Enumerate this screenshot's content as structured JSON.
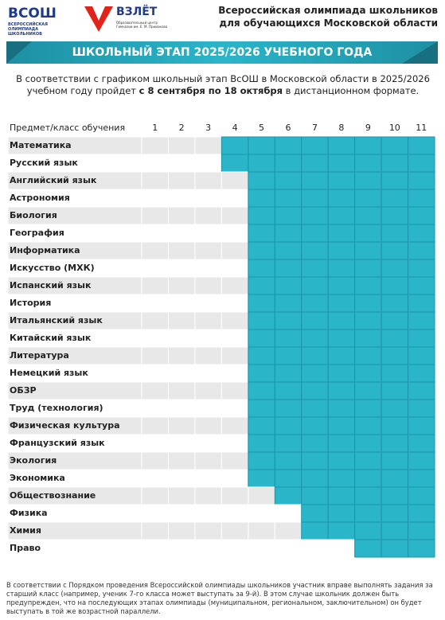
{
  "header": {
    "logo_vsosh": "ВСОШ",
    "logo_vsosh_sub": "ВСЕРОССИЙСКАЯ ОЛИМПИАДА ШКОЛЬНИКОВ",
    "logo_vzlet": "ВЗЛЁТ",
    "logo_vzlet_sub": "Образовательный центр Гимназии им. Е. М. Примакова",
    "title": "Всероссийская олимпиада школьников для обучающихся Московской области"
  },
  "banner": "ШКОЛЬНЫЙ ЭТАП 2025/2026 УЧЕБНОГО ГОДА",
  "intro": {
    "before": "В соответствии с графиком школьный этап ВсОШ в Московской области в 2025/2026 учебном году пройдет ",
    "bold": "с 8 сентября по 18 октября",
    "after": " в дистанционном формате."
  },
  "table": {
    "header": "Предмет/класс обучения",
    "grades": [
      1,
      2,
      3,
      4,
      5,
      6,
      7,
      8,
      9,
      10,
      11
    ],
    "highlight_color": "#2bb5c9",
    "rows": [
      {
        "subject": "Математика",
        "first_grade": 4
      },
      {
        "subject": "Русский язык",
        "first_grade": 4
      },
      {
        "subject": "Английский язык",
        "first_grade": 5
      },
      {
        "subject": "Астрономия",
        "first_grade": 5
      },
      {
        "subject": "Биология",
        "first_grade": 5
      },
      {
        "subject": "География",
        "first_grade": 5
      },
      {
        "subject": "Информатика",
        "first_grade": 5
      },
      {
        "subject": "Искусство (МХК)",
        "first_grade": 5
      },
      {
        "subject": "Испанский язык",
        "first_grade": 5
      },
      {
        "subject": "История",
        "first_grade": 5
      },
      {
        "subject": "Итальянский язык",
        "first_grade": 5
      },
      {
        "subject": "Китайский язык",
        "first_grade": 5
      },
      {
        "subject": "Литература",
        "first_grade": 5
      },
      {
        "subject": "Немецкий язык",
        "first_grade": 5
      },
      {
        "subject": "ОБЗР",
        "first_grade": 5
      },
      {
        "subject": "Труд (технология)",
        "first_grade": 5
      },
      {
        "subject": "Физическая культура",
        "first_grade": 5
      },
      {
        "subject": "Французский язык",
        "first_grade": 5
      },
      {
        "subject": "Экология",
        "first_grade": 5
      },
      {
        "subject": "Экономика",
        "first_grade": 5
      },
      {
        "subject": "Обществознание",
        "first_grade": 6
      },
      {
        "subject": "Физика",
        "first_grade": 7
      },
      {
        "subject": "Химия",
        "first_grade": 7
      },
      {
        "subject": "Право",
        "first_grade": 9
      }
    ]
  },
  "footnote": "В соответствии с Порядком проведения Всероссийской олимпиады школьников участник вправе выполнять задания за старший класс (например, ученик 7-го класса может выступать за 9-й). В этом случае школьник должен быть предупрежден, что на последующих этапах олимпиады (муниципальном, региональном, заключительном) он будет выступать в той же возрастной параллели."
}
